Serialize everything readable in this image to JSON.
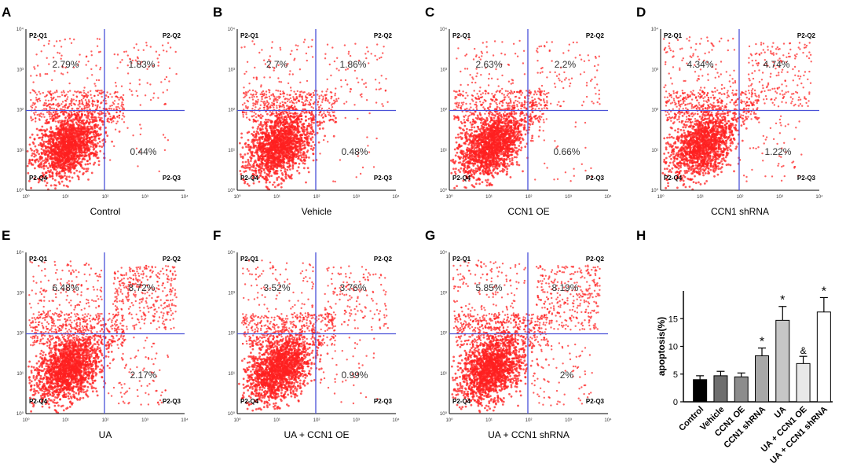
{
  "colors": {
    "dots": "#ff2020",
    "gate": "#4a52d8",
    "axis": "#000000"
  },
  "chart_data": [
    {
      "type": "scatter",
      "panel_letter": "A",
      "xlabel": "Control",
      "quadrant_labels": [
        "P2-Q1",
        "P2-Q2",
        "P2-Q3",
        "P2-Q4"
      ],
      "percentages": {
        "Q1": "2.79%",
        "Q2": "1.83%",
        "Q3": "0.44%"
      },
      "tick_labels": [
        "10⁰",
        "10¹",
        "10²",
        "10³",
        "10⁴"
      ],
      "density": 1.0
    },
    {
      "type": "scatter",
      "panel_letter": "B",
      "xlabel": "Vehicle",
      "quadrant_labels": [
        "P2-Q1",
        "P2-Q2",
        "P2-Q3",
        "P2-Q4"
      ],
      "percentages": {
        "Q1": "2.7%",
        "Q2": "1.86%",
        "Q3": "0.48%"
      },
      "tick_labels": [
        "10⁰",
        "10¹",
        "10²",
        "10³",
        "10⁴"
      ],
      "density": 1.0
    },
    {
      "type": "scatter",
      "panel_letter": "C",
      "xlabel": "CCN1 OE",
      "quadrant_labels": [
        "P2-Q1",
        "P2-Q2",
        "P2-Q3",
        "P2-Q4"
      ],
      "percentages": {
        "Q1": "2.63%",
        "Q2": "2.2%",
        "Q3": "0.66%"
      },
      "tick_labels": [
        "10⁰",
        "10¹",
        "10²",
        "10³",
        "10⁴"
      ],
      "density": 1.0
    },
    {
      "type": "scatter",
      "panel_letter": "D",
      "xlabel": "CCN1 shRNA",
      "quadrant_labels": [
        "P2-Q1",
        "P2-Q2",
        "P2-Q3",
        "P2-Q4"
      ],
      "percentages": {
        "Q1": "4.34%",
        "Q2": "4.74%",
        "Q3": "1.22%"
      },
      "tick_labels": [
        "10⁰",
        "10¹",
        "10²",
        "10³",
        "10⁴"
      ],
      "density": 0.85
    },
    {
      "type": "scatter",
      "panel_letter": "E",
      "xlabel": "UA",
      "quadrant_labels": [
        "P2-Q1",
        "P2-Q2",
        "P2-Q3",
        "P2-Q4"
      ],
      "percentages": {
        "Q1": "6.48%",
        "Q2": "8.72%",
        "Q3": "2.17%"
      },
      "tick_labels": [
        "10⁰",
        "10¹",
        "10²",
        "10³",
        "10⁴"
      ],
      "density": 1.0
    },
    {
      "type": "scatter",
      "panel_letter": "F",
      "xlabel": "UA + CCN1 OE",
      "quadrant_labels": [
        "P2-Q1",
        "P2-Q2",
        "P2-Q3",
        "P2-Q4"
      ],
      "percentages": {
        "Q1": "3.52%",
        "Q2": "3.76%",
        "Q3": "0.99%"
      },
      "tick_labels": [
        "10⁰",
        "10¹",
        "10²",
        "10³",
        "10⁴"
      ],
      "density": 1.0
    },
    {
      "type": "scatter",
      "panel_letter": "G",
      "xlabel": "UA + CCN1 shRNA",
      "quadrant_labels": [
        "P2-Q1",
        "P2-Q2",
        "P2-Q3",
        "P2-Q4"
      ],
      "percentages": {
        "Q1": "5.85%",
        "Q2": "8.19%",
        "Q3": "2%"
      },
      "tick_labels": [
        "10⁰",
        "10¹",
        "10²",
        "10³",
        "10⁴"
      ],
      "density": 1.0
    },
    {
      "type": "bar",
      "panel_letter": "H",
      "title": "",
      "xlabel": "",
      "ylabel": "apoptosis(%)",
      "ylim": [
        0,
        20
      ],
      "yticks": [
        0,
        5,
        10,
        15
      ],
      "categories": [
        "Control",
        "Vehicle",
        "CCN1 OE",
        "CCN1 shRNA",
        "UA",
        "UA + CCN1 OE",
        "UA + CCN1 shRNA"
      ],
      "values": [
        4.0,
        4.7,
        4.5,
        8.3,
        14.7,
        6.9,
        16.2
      ],
      "errors": [
        0.7,
        0.8,
        0.7,
        1.4,
        2.5,
        1.3,
        2.6
      ],
      "fills": [
        "#000000",
        "#6e6e6e",
        "#8c8c8c",
        "#a8a8a8",
        "#c6c6c6",
        "#e8e8e8",
        "#ffffff"
      ],
      "annotations": [
        "",
        "",
        "",
        "*",
        "*",
        "&",
        "*"
      ]
    }
  ]
}
